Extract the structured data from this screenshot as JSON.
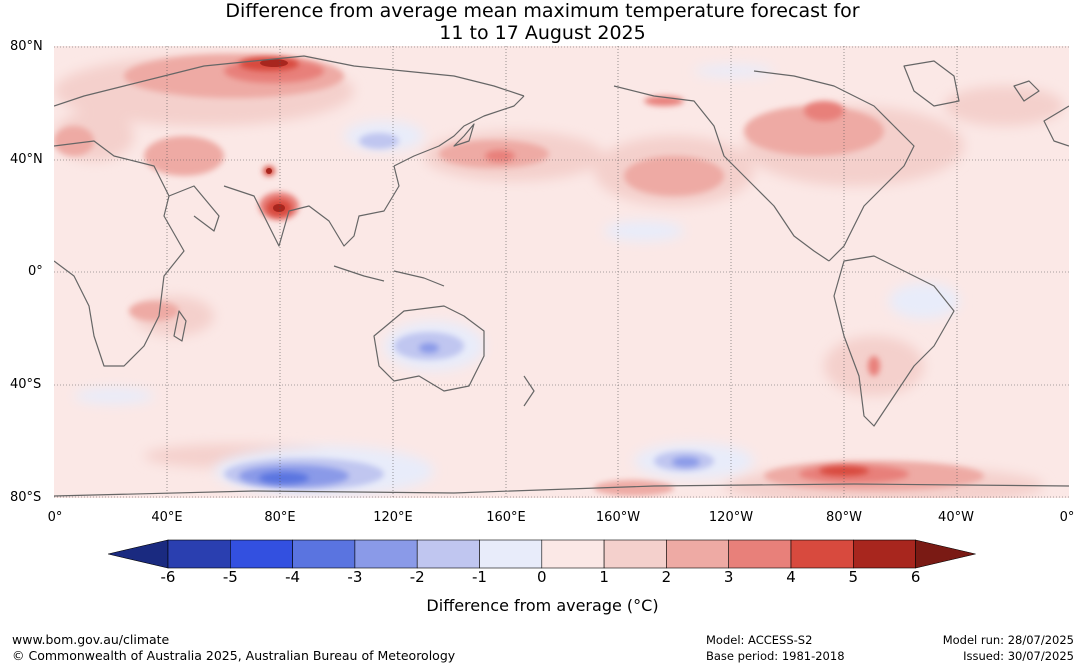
{
  "title_line1": "Difference from average mean maximum temperature forecast for",
  "title_line2": "11 to 17 August 2025",
  "lat_labels": [
    "80°N",
    "40°N",
    "0°",
    "40°S",
    "80°S"
  ],
  "lon_labels": [
    "0°",
    "40°E",
    "80°E",
    "120°E",
    "160°E",
    "160°W",
    "120°W",
    "80°W",
    "40°W",
    "0°"
  ],
  "colorbar": {
    "label": "Difference from average (°C)",
    "ticks": [
      "-6",
      "-5",
      "-4",
      "-3",
      "-2",
      "-1",
      "0",
      "1",
      "2",
      "3",
      "4",
      "5",
      "6"
    ],
    "colors": [
      "#1a2a80",
      "#2a3fb0",
      "#3350e0",
      "#5a74e0",
      "#8a9ae8",
      "#c0c6f0",
      "#e8ecfa",
      "#fbe8e6",
      "#f4d0cc",
      "#eeaaa4",
      "#e8807a",
      "#d84a3e",
      "#a8261e",
      "#7a1a14"
    ]
  },
  "footer": {
    "url": "www.bom.gov.au/climate",
    "copyright": "© Commonwealth of Australia 2025, Australian Bureau of Meteorology",
    "model": "Model: ACCESS-S2",
    "base_period": "Base period: 1981-2018",
    "model_run": "Model run: 28/07/2025",
    "issued": "Issued: 30/07/2025"
  }
}
